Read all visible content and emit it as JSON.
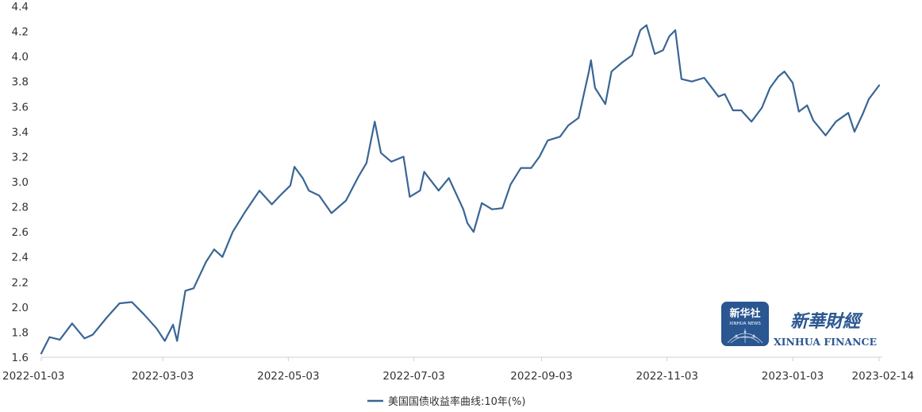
{
  "chart_data": {
    "type": "line",
    "title": "",
    "xlabel": "",
    "ylabel": "",
    "ylim": [
      1.6,
      4.4
    ],
    "y_ticks": [
      "1.6",
      "1.8",
      "2.0",
      "2.2",
      "2.4",
      "2.6",
      "2.8",
      "3.0",
      "3.2",
      "3.4",
      "3.6",
      "3.8",
      "4.0",
      "4.2",
      "4.4"
    ],
    "x_range": [
      "2022-01-03",
      "2023-02-14"
    ],
    "x_ticks": [
      "2022-01-03",
      "2022-03-03",
      "2022-05-03",
      "2022-07-03",
      "2022-09-03",
      "2022-11-03",
      "2023-01-03",
      "2023-02-14"
    ],
    "grid": false,
    "legend_position": "bottom-center",
    "series": [
      {
        "name": "美国国债收益率曲线:10年(%)",
        "color": "#3a6595",
        "points": [
          [
            "2022-01-03",
            1.63
          ],
          [
            "2022-01-07",
            1.76
          ],
          [
            "2022-01-12",
            1.74
          ],
          [
            "2022-01-18",
            1.87
          ],
          [
            "2022-01-24",
            1.75
          ],
          [
            "2022-01-28",
            1.78
          ],
          [
            "2022-02-04",
            1.92
          ],
          [
            "2022-02-10",
            2.03
          ],
          [
            "2022-02-16",
            2.04
          ],
          [
            "2022-02-22",
            1.94
          ],
          [
            "2022-02-28",
            1.83
          ],
          [
            "2022-03-04",
            1.73
          ],
          [
            "2022-03-08",
            1.86
          ],
          [
            "2022-03-10",
            1.73
          ],
          [
            "2022-03-14",
            2.13
          ],
          [
            "2022-03-18",
            2.15
          ],
          [
            "2022-03-24",
            2.36
          ],
          [
            "2022-03-28",
            2.46
          ],
          [
            "2022-04-01",
            2.4
          ],
          [
            "2022-04-06",
            2.6
          ],
          [
            "2022-04-12",
            2.76
          ],
          [
            "2022-04-19",
            2.93
          ],
          [
            "2022-04-25",
            2.82
          ],
          [
            "2022-04-29",
            2.89
          ],
          [
            "2022-05-04",
            2.97
          ],
          [
            "2022-05-06",
            3.12
          ],
          [
            "2022-05-10",
            3.03
          ],
          [
            "2022-05-13",
            2.93
          ],
          [
            "2022-05-18",
            2.89
          ],
          [
            "2022-05-24",
            2.75
          ],
          [
            "2022-05-31",
            2.85
          ],
          [
            "2022-06-06",
            3.04
          ],
          [
            "2022-06-10",
            3.15
          ],
          [
            "2022-06-14",
            3.48
          ],
          [
            "2022-06-17",
            3.23
          ],
          [
            "2022-06-22",
            3.16
          ],
          [
            "2022-06-28",
            3.2
          ],
          [
            "2022-07-01",
            2.88
          ],
          [
            "2022-07-06",
            2.93
          ],
          [
            "2022-07-08",
            3.08
          ],
          [
            "2022-07-15",
            2.93
          ],
          [
            "2022-07-20",
            3.03
          ],
          [
            "2022-07-27",
            2.78
          ],
          [
            "2022-07-29",
            2.67
          ],
          [
            "2022-08-01",
            2.6
          ],
          [
            "2022-08-05",
            2.83
          ],
          [
            "2022-08-10",
            2.78
          ],
          [
            "2022-08-15",
            2.79
          ],
          [
            "2022-08-19",
            2.98
          ],
          [
            "2022-08-24",
            3.11
          ],
          [
            "2022-08-29",
            3.11
          ],
          [
            "2022-09-02",
            3.2
          ],
          [
            "2022-09-06",
            3.33
          ],
          [
            "2022-09-12",
            3.36
          ],
          [
            "2022-09-16",
            3.45
          ],
          [
            "2022-09-21",
            3.51
          ],
          [
            "2022-09-26",
            3.88
          ],
          [
            "2022-09-27",
            3.97
          ],
          [
            "2022-09-29",
            3.75
          ],
          [
            "2022-10-04",
            3.62
          ],
          [
            "2022-10-07",
            3.88
          ],
          [
            "2022-10-12",
            3.95
          ],
          [
            "2022-10-17",
            4.01
          ],
          [
            "2022-10-21",
            4.21
          ],
          [
            "2022-10-24",
            4.25
          ],
          [
            "2022-10-28",
            4.02
          ],
          [
            "2022-11-01",
            4.05
          ],
          [
            "2022-11-04",
            4.16
          ],
          [
            "2022-11-07",
            4.21
          ],
          [
            "2022-11-10",
            3.82
          ],
          [
            "2022-11-15",
            3.8
          ],
          [
            "2022-11-21",
            3.83
          ],
          [
            "2022-11-28",
            3.68
          ],
          [
            "2022-12-01",
            3.7
          ],
          [
            "2022-12-05",
            3.57
          ],
          [
            "2022-12-09",
            3.57
          ],
          [
            "2022-12-14",
            3.48
          ],
          [
            "2022-12-19",
            3.59
          ],
          [
            "2022-12-23",
            3.75
          ],
          [
            "2022-12-27",
            3.84
          ],
          [
            "2022-12-30",
            3.88
          ],
          [
            "2023-01-03",
            3.79
          ],
          [
            "2023-01-06",
            3.56
          ],
          [
            "2023-01-10",
            3.61
          ],
          [
            "2023-01-13",
            3.49
          ],
          [
            "2023-01-19",
            3.37
          ],
          [
            "2023-01-24",
            3.48
          ],
          [
            "2023-01-30",
            3.55
          ],
          [
            "2023-02-02",
            3.4
          ],
          [
            "2023-02-06",
            3.54
          ],
          [
            "2023-02-09",
            3.66
          ],
          [
            "2023-02-14",
            3.77
          ]
        ]
      }
    ]
  },
  "watermark": {
    "brand_en": "XINHUA FINANCE",
    "brand_cn": "新華財經",
    "badge_cn": "新华社",
    "badge_en": "XINHUA NEWS"
  }
}
